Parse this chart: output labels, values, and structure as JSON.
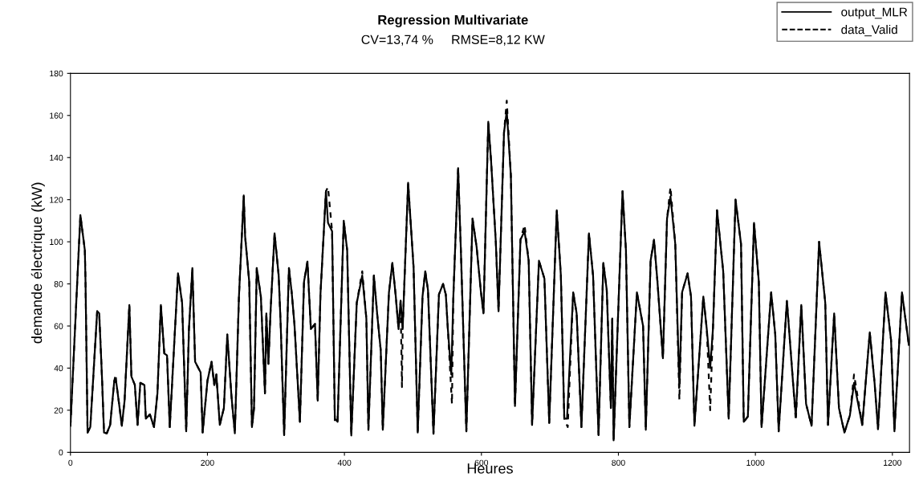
{
  "chart_data": {
    "type": "line",
    "title": "Regression Multivariate",
    "subtitle": "CV=13,74 %     RMSE=8,12 KW",
    "xlabel": "Heures",
    "ylabel": "demande électrique (kW)",
    "xlim": [
      0,
      1225
    ],
    "xticks": [
      0,
      200,
      400,
      600,
      800,
      1000,
      1200
    ],
    "ylim": [
      0,
      180
    ],
    "yticks": [
      0,
      20,
      40,
      60,
      80,
      100,
      120,
      140,
      160,
      180
    ],
    "grid": false,
    "legend": "top right",
    "marker": "none",
    "series": [
      {
        "name": "output_MLR",
        "color": "#000000",
        "line_style": "solid",
        "x": [
          0,
          14.5,
          21,
          22,
          25,
          29,
          39,
          42,
          46,
          49,
          53,
          58,
          64,
          67,
          71,
          75,
          79,
          86,
          89,
          94,
          98,
          102,
          108,
          110,
          116,
          122,
          127,
          132,
          137,
          141,
          145,
          157,
          163,
          169,
          173,
          178,
          182,
          190,
          193,
          200,
          206,
          210,
          213,
          218,
          224,
          229,
          235,
          240,
          246,
          253,
          255,
          261,
          265,
          268,
          272,
          278,
          284,
          286,
          289,
          292,
          298,
          304,
          307,
          312,
          319,
          323,
          327,
          335,
          341,
          346,
          351,
          357,
          361,
          365,
          373,
          376,
          382,
          386,
          390,
          399,
          404,
          410,
          418,
          426,
          432,
          435,
          443,
          448,
          453,
          456,
          465,
          470,
          475,
          479,
          482,
          485,
          493,
          501,
          507,
          514,
          518,
          522,
          530,
          538,
          544,
          548,
          551,
          556,
          559,
          566,
          570,
          578,
          587,
          593,
          599,
          603,
          610,
          614,
          621,
          625,
          633,
          637,
          643,
          649,
          657,
          663,
          669,
          674,
          684,
          692,
          699,
          710,
          716,
          721,
          725,
          734,
          739,
          746,
          757,
          763,
          771,
          778,
          783,
          789,
          791,
          793,
          806,
          811,
          816,
          827,
          836,
          840,
          847,
          852,
          857,
          865,
          871,
          876,
          883,
          889,
          893,
          901,
          906,
          911,
          924,
          929,
          934,
          938,
          944,
          953,
          961,
          971,
          979,
          983,
          989,
          998,
          1005,
          1009,
          1023,
          1029,
          1034,
          1046,
          1055,
          1059,
          1067,
          1074,
          1082,
          1093,
          1102,
          1106,
          1115,
          1122,
          1130,
          1138,
          1144,
          1156,
          1167,
          1174,
          1179,
          1190,
          1198,
          1203,
          1214,
          1224
        ],
        "values": [
          12.6,
          112.7,
          96,
          81,
          9.4,
          12,
          67,
          66,
          36,
          9.4,
          9,
          13,
          34,
          33,
          23,
          12.6,
          24.5,
          70,
          36,
          32,
          13,
          33,
          32,
          16,
          18,
          12,
          28,
          70,
          47,
          46,
          12,
          85,
          71,
          10,
          58.5,
          87.5,
          43,
          38,
          9.4,
          34,
          43,
          32,
          37,
          13,
          21,
          56,
          27,
          9,
          74,
          122,
          102.6,
          81,
          12,
          21,
          87.5,
          74,
          28,
          66,
          42,
          66,
          104,
          84,
          60,
          8.2,
          87.5,
          76,
          61,
          14.5,
          81,
          90.6,
          58.5,
          61,
          24.5,
          75,
          124,
          109,
          105,
          16,
          14.5,
          110,
          96,
          8,
          71,
          84,
          63.6,
          10.7,
          84,
          65,
          48.5,
          10.7,
          76,
          90,
          74,
          58.5,
          72,
          58.5,
          128,
          87.5,
          9.4,
          74,
          86,
          77,
          8.8,
          75,
          80,
          75,
          58.5,
          37,
          74,
          135,
          96,
          10,
          111,
          97.5,
          77,
          66,
          157,
          139,
          100,
          67,
          152,
          162,
          131.5,
          22,
          101,
          105,
          91,
          13,
          91,
          82.5,
          14,
          115,
          84,
          16,
          16,
          76,
          66,
          12,
          104,
          84,
          8.2,
          90,
          77,
          21,
          63.6,
          5.7,
          124,
          96,
          12,
          76,
          60,
          10.7,
          91,
          101,
          81,
          44.7,
          111,
          121.5,
          99,
          31,
          76,
          85,
          74,
          12.6,
          74,
          58.5,
          40,
          58.5,
          115,
          86,
          16,
          120,
          99,
          14.5,
          17,
          109,
          81,
          12,
          76,
          56,
          10,
          72,
          33,
          17,
          70,
          23,
          12.6,
          100,
          71,
          13,
          66,
          21,
          9.4,
          17.6,
          33,
          13,
          57,
          33,
          11,
          76,
          53.5,
          10,
          76,
          51
        ]
      },
      {
        "name": "data_Valid",
        "color": "#000000",
        "line_style": "dashed",
        "x": [
          0,
          14.5,
          21,
          22,
          25,
          29,
          39,
          42,
          46,
          49,
          53,
          58,
          64,
          66,
          67,
          71,
          75,
          79,
          86,
          89,
          94,
          98,
          102,
          108,
          110,
          116,
          122,
          127,
          132,
          137,
          141,
          145,
          157,
          163,
          169,
          173,
          178,
          182,
          190,
          193,
          200,
          206,
          210,
          213,
          218,
          224,
          229,
          235,
          240,
          246,
          253,
          255,
          261,
          265,
          268,
          272,
          278,
          284,
          286,
          289,
          292,
          298,
          304,
          307,
          312,
          319,
          323,
          327,
          335,
          341,
          346,
          351,
          357,
          361,
          365,
          373,
          376,
          382,
          386,
          390,
          399,
          404,
          410,
          418,
          426,
          432,
          435,
          443,
          448,
          453,
          456,
          465,
          470,
          475,
          479,
          482,
          484,
          485,
          493,
          501,
          507,
          514,
          518,
          522,
          530,
          538,
          544,
          548,
          551,
          557,
          559,
          566,
          570,
          578,
          587,
          593,
          599,
          603,
          610,
          614,
          621,
          625,
          633,
          637,
          643,
          649,
          657,
          663,
          669,
          674,
          684,
          692,
          699,
          710,
          716,
          721,
          726,
          734,
          739,
          746,
          757,
          763,
          771,
          778,
          783,
          789,
          791,
          793,
          806,
          811,
          816,
          827,
          836,
          840,
          847,
          852,
          857,
          865,
          871,
          876,
          883,
          889,
          893,
          901,
          906,
          911,
          924,
          929,
          934,
          938,
          944,
          953,
          961,
          971,
          979,
          983,
          989,
          998,
          1005,
          1009,
          1023,
          1029,
          1034,
          1046,
          1055,
          1059,
          1067,
          1074,
          1082,
          1093,
          1102,
          1106,
          1115,
          1122,
          1130,
          1138,
          1144,
          1156,
          1167,
          1174,
          1179,
          1190,
          1198,
          1203,
          1214,
          1224
        ],
        "values": [
          12.6,
          112.7,
          96,
          81,
          9.4,
          12,
          67,
          66,
          36,
          9.4,
          9,
          13,
          34,
          37,
          33,
          23,
          12.6,
          24.5,
          70,
          36,
          32,
          13,
          33,
          32,
          16,
          18,
          12,
          28,
          70,
          47,
          46,
          12,
          85,
          71,
          10,
          58.5,
          87.5,
          43,
          38,
          9.4,
          34,
          43,
          32,
          37,
          13,
          21,
          56,
          27,
          9,
          74,
          122,
          102.6,
          81,
          12,
          21,
          87.5,
          74,
          28,
          66,
          42,
          66,
          104,
          84,
          60,
          8.2,
          87.5,
          76,
          61,
          14.5,
          81,
          90.6,
          58.5,
          61,
          24.5,
          75,
          124,
          126,
          105,
          14,
          14.5,
          110,
          96,
          8,
          71,
          86,
          63.6,
          10.7,
          84,
          65,
          48.5,
          10.7,
          76,
          90,
          74,
          58.5,
          72,
          31,
          58.5,
          128,
          87.5,
          9.4,
          74,
          86,
          77,
          8.8,
          75,
          80,
          75,
          58.5,
          23,
          74,
          135,
          96,
          10,
          111,
          97.5,
          77,
          66,
          157,
          139,
          100,
          67,
          152,
          167,
          131.5,
          22,
          101,
          108,
          91,
          13,
          91,
          82.5,
          14,
          115,
          84,
          16,
          12,
          76,
          66,
          12,
          104,
          84,
          8.2,
          90,
          77,
          21,
          63.6,
          5.7,
          124,
          96,
          12,
          76,
          60,
          10.7,
          91,
          101,
          81,
          44.7,
          111,
          126,
          99,
          25,
          76,
          85,
          74,
          12.6,
          74,
          58.5,
          20,
          58.5,
          115,
          86,
          16,
          120,
          99,
          14.5,
          17,
          109,
          81,
          12,
          76,
          56,
          10,
          72,
          33,
          15,
          70,
          23,
          12.6,
          100,
          71,
          13,
          66,
          21,
          9.4,
          17.6,
          37,
          13,
          57,
          33,
          11,
          76,
          53.5,
          10,
          76,
          51
        ]
      }
    ]
  }
}
